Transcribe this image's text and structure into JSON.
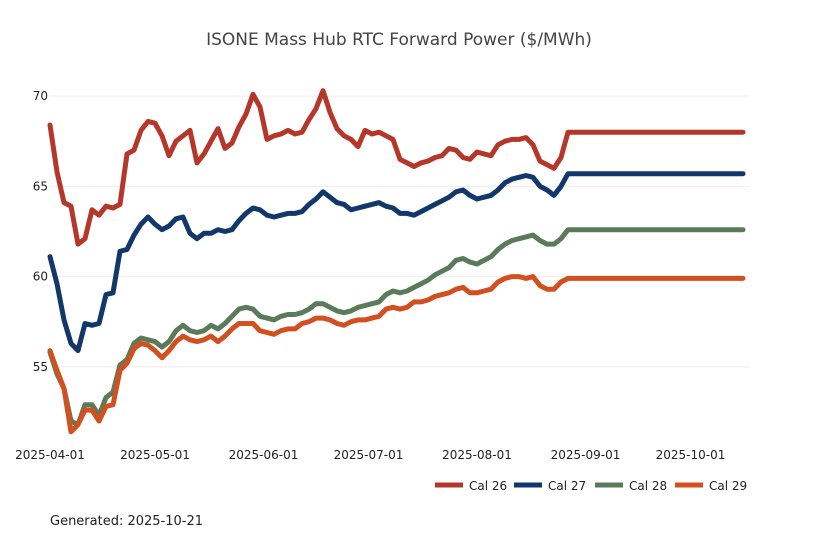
{
  "chart_data": {
    "type": "line",
    "title": "ISONE Mass Hub RTC Forward Power ($/MWh)",
    "xlabel": "",
    "ylabel": "",
    "ylim": [
      51.5,
      72
    ],
    "yticks": [
      55,
      60,
      65,
      70
    ],
    "xticks": [
      "2025-04-01",
      "2025-05-01",
      "2025-06-01",
      "2025-07-01",
      "2025-08-01",
      "2025-09-01",
      "2025-10-01"
    ],
    "xtick_days": [
      0,
      30,
      61,
      91,
      122,
      153,
      183
    ],
    "grid": true,
    "legend_position": "bottom-right",
    "x": [
      0,
      2,
      4,
      6,
      8,
      10,
      12,
      14,
      16,
      18,
      20,
      22,
      24,
      26,
      28,
      30,
      32,
      34,
      36,
      38,
      40,
      42,
      44,
      46,
      48,
      50,
      52,
      54,
      56,
      58,
      60,
      62,
      64,
      66,
      68,
      70,
      72,
      74,
      76,
      78,
      80,
      82,
      84,
      86,
      88,
      90,
      92,
      94,
      96,
      98,
      100,
      102,
      104,
      106,
      108,
      110,
      112,
      114,
      116,
      118,
      120,
      122,
      124,
      126,
      128,
      130,
      132,
      134,
      136,
      138,
      140,
      142,
      144,
      146,
      148,
      150,
      152,
      154,
      156,
      158,
      160,
      162,
      164,
      166,
      168,
      170,
      172,
      174,
      176,
      178,
      180,
      182,
      184,
      186,
      188,
      190,
      192,
      194,
      196,
      198
    ],
    "series": [
      {
        "name": "Cal 26",
        "color": "#b5372a",
        "values": [
          68.4,
          65.8,
          64.1,
          63.9,
          61.8,
          62.1,
          63.7,
          63.4,
          63.9,
          63.8,
          64.0,
          66.8,
          67.0,
          68.1,
          68.6,
          68.5,
          67.8,
          66.7,
          67.5,
          67.8,
          68.1,
          66.3,
          66.8,
          67.5,
          68.2,
          67.1,
          67.4,
          68.3,
          69.0,
          70.1,
          69.4,
          67.6,
          67.8,
          67.9,
          68.1,
          67.9,
          68.0,
          68.7,
          69.3,
          70.3,
          69.1,
          68.2,
          67.8,
          67.6,
          67.2,
          68.1,
          67.9,
          68.0,
          67.8,
          67.6,
          66.5,
          66.3,
          66.1,
          66.3,
          66.4,
          66.6,
          66.7,
          67.1,
          67.0,
          66.6,
          66.5,
          66.9,
          66.8,
          66.7,
          67.3,
          67.5,
          67.6,
          67.6,
          67.7,
          67.3,
          66.4,
          66.2,
          66.0,
          66.6,
          68.0,
          68.0,
          68.0,
          68.0,
          68.0,
          68.0,
          68.0,
          68.0,
          68.0,
          68.0,
          68.0,
          68.0,
          68.0,
          68.0,
          68.0,
          68.0,
          68.0,
          68.0,
          68.0,
          68.0,
          68.0,
          68.0,
          68.0,
          68.0,
          68.0,
          68.0
        ]
      },
      {
        "name": "Cal 27",
        "color": "#12386b",
        "values": [
          61.1,
          59.6,
          57.6,
          56.3,
          55.9,
          57.4,
          57.3,
          57.4,
          59.0,
          59.1,
          61.4,
          61.5,
          62.3,
          62.9,
          63.3,
          62.9,
          62.6,
          62.8,
          63.2,
          63.3,
          62.4,
          62.1,
          62.4,
          62.4,
          62.6,
          62.5,
          62.6,
          63.1,
          63.5,
          63.8,
          63.7,
          63.4,
          63.3,
          63.4,
          63.5,
          63.5,
          63.6,
          64.0,
          64.3,
          64.7,
          64.4,
          64.1,
          64.0,
          63.7,
          63.8,
          63.9,
          64.0,
          64.1,
          63.9,
          63.8,
          63.5,
          63.5,
          63.4,
          63.6,
          63.8,
          64.0,
          64.2,
          64.4,
          64.7,
          64.8,
          64.5,
          64.3,
          64.4,
          64.5,
          64.8,
          65.2,
          65.4,
          65.5,
          65.6,
          65.5,
          65.0,
          64.8,
          64.5,
          65.0,
          65.7,
          65.7,
          65.7,
          65.7,
          65.7,
          65.7,
          65.7,
          65.7,
          65.7,
          65.7,
          65.7,
          65.7,
          65.7,
          65.7,
          65.7,
          65.7,
          65.7,
          65.7,
          65.7,
          65.7,
          65.7,
          65.7,
          65.7,
          65.7,
          65.7,
          65.7
        ]
      },
      {
        "name": "Cal 28",
        "color": "#5b7a5a",
        "values": [
          55.8,
          54.6,
          53.8,
          52.0,
          51.8,
          52.9,
          52.9,
          52.3,
          53.3,
          53.6,
          55.1,
          55.4,
          56.3,
          56.6,
          56.5,
          56.4,
          56.1,
          56.4,
          57.0,
          57.3,
          57.0,
          56.9,
          57.0,
          57.3,
          57.1,
          57.4,
          57.8,
          58.2,
          58.3,
          58.2,
          57.8,
          57.7,
          57.6,
          57.8,
          57.9,
          57.9,
          58.0,
          58.2,
          58.5,
          58.5,
          58.3,
          58.1,
          58.0,
          58.1,
          58.3,
          58.4,
          58.5,
          58.6,
          59.0,
          59.2,
          59.1,
          59.2,
          59.4,
          59.6,
          59.8,
          60.1,
          60.3,
          60.5,
          60.9,
          61.0,
          60.8,
          60.7,
          60.9,
          61.1,
          61.5,
          61.8,
          62.0,
          62.1,
          62.2,
          62.3,
          62.0,
          61.8,
          61.8,
          62.1,
          62.6,
          62.6,
          62.6,
          62.6,
          62.6,
          62.6,
          62.6,
          62.6,
          62.6,
          62.6,
          62.6,
          62.6,
          62.6,
          62.6,
          62.6,
          62.6,
          62.6,
          62.6,
          62.6,
          62.6,
          62.6,
          62.6,
          62.6,
          62.6,
          62.6,
          62.6
        ]
      },
      {
        "name": "Cal 29",
        "color": "#d2501f",
        "values": [
          null,
          null,
          null,
          null,
          null,
          null,
          null,
          null,
          null,
          null,
          null,
          null,
          null,
          null,
          null,
          null,
          null,
          null,
          null,
          null,
          null,
          null,
          null,
          null,
          null,
          null,
          null,
          null,
          null,
          null,
          null,
          null,
          null,
          null,
          null,
          null,
          null,
          null,
          null,
          null,
          null,
          null,
          null,
          null,
          null,
          null,
          null,
          null,
          null,
          null,
          null,
          null,
          null,
          null,
          null,
          null,
          null,
          null,
          null,
          null,
          null,
          null,
          null,
          null,
          null,
          null,
          null,
          null,
          null,
          null,
          null,
          null,
          null,
          null,
          null,
          null,
          null,
          null,
          null,
          null,
          null,
          null,
          null,
          null,
          null,
          null,
          null,
          null,
          null,
          null,
          null,
          null,
          null,
          null,
          null,
          null,
          null,
          null,
          null,
          null
        ]
      }
    ]
  },
  "footer": {
    "generated": "Generated: 2025-10-21"
  }
}
